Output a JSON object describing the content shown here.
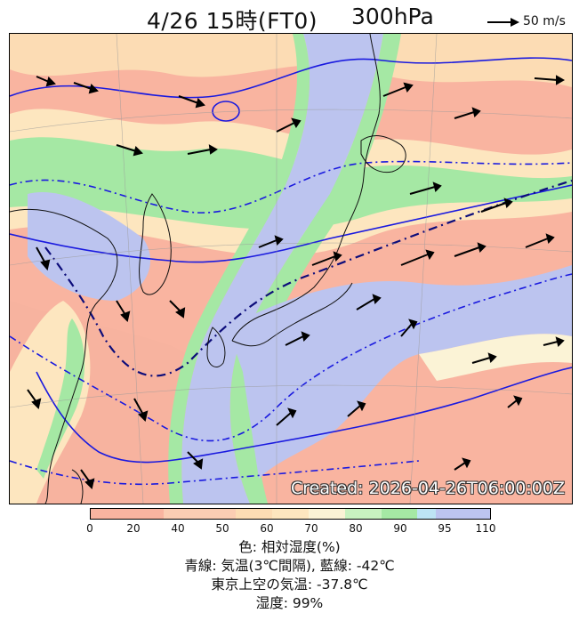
{
  "header": {
    "title": "4/26 15時(FT0)",
    "level": "300hPa",
    "scale_label": "50 m/s"
  },
  "map": {
    "stamp": "Created: 2026-04-26T06:00:00Z",
    "colors": {
      "rh_0_20": "#f9b4a0",
      "rh_20_40": "#fbcdb3",
      "rh_40_50": "#fcdcb4",
      "rh_50_60": "#fde6bf",
      "rh_60_70": "#fbf3d6",
      "rh_70_80": "#c8f2c0",
      "rh_80_90": "#a5e8a4",
      "rh_90_95": "#bde4f4",
      "rh_95_110": "#bcc4ef",
      "temp_line": "#1a1adf",
      "minus42_line": "#0c0c7a",
      "coast": "#111111"
    }
  },
  "colorbar": {
    "ticks": [
      "0",
      "20",
      "40",
      "50",
      "60",
      "70",
      "80",
      "90",
      "95",
      "110"
    ]
  },
  "legend": {
    "line1": "色: 相対湿度(%)",
    "line2": "青線: 気温(3℃間隔), 藍線: -42℃",
    "line3": "東京上空の気温: -37.8℃",
    "line4": "湿度: 99%"
  }
}
